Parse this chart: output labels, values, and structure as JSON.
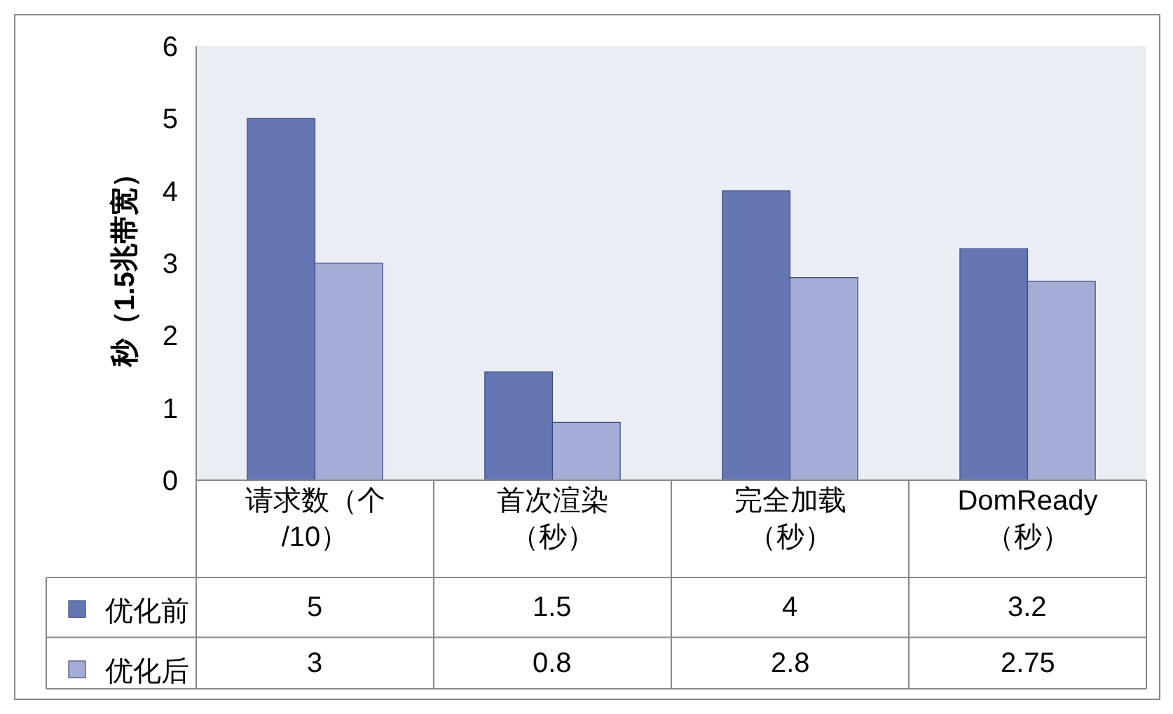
{
  "chart_data": {
    "type": "bar",
    "ylabel": "秒（1.5兆带宽）",
    "categories": [
      "请求数（个/10）",
      "首次渲染（秒）",
      "完全加载（秒）",
      "DomReady（秒）"
    ],
    "series": [
      {
        "name": "优化前",
        "color": "#6577b3",
        "values": [
          5,
          1.5,
          4,
          3.2
        ]
      },
      {
        "name": "优化后",
        "color": "#a5add6",
        "values": [
          3,
          0.8,
          2.8,
          2.75
        ]
      }
    ],
    "ylim": [
      0,
      6
    ],
    "yticks": [
      0,
      1,
      2,
      3,
      4,
      5,
      6
    ],
    "grid": false,
    "legend": "bottom left",
    "data_labels": true
  }
}
